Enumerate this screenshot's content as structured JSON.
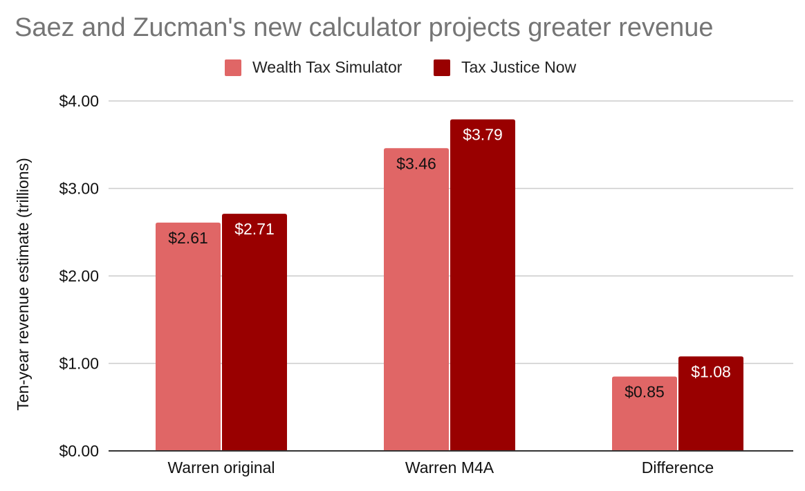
{
  "chart_data": {
    "type": "bar",
    "title": "Saez and Zucman's new calculator projects greater revenue",
    "xlabel": "",
    "ylabel": "Ten-year revenue estimate (trillions)",
    "categories": [
      "Warren original",
      "Warren M4A",
      "Difference"
    ],
    "series": [
      {
        "name": "Wealth Tax Simulator",
        "color": "#e06666",
        "label_color": "#111111",
        "values": [
          2.61,
          3.46,
          0.85
        ],
        "labels": [
          "$2.61",
          "$3.46",
          "$0.85"
        ]
      },
      {
        "name": "Tax Justice Now",
        "color": "#990000",
        "label_color": "#ffffff",
        "values": [
          2.71,
          3.79,
          1.08
        ],
        "labels": [
          "$2.71",
          "$3.79",
          "$1.08"
        ]
      }
    ],
    "ylim": [
      0,
      4
    ],
    "yticks": [
      0,
      1,
      2,
      3,
      4
    ],
    "ytick_labels": [
      "$0.00",
      "$1.00",
      "$2.00",
      "$3.00",
      "$4.00"
    ],
    "grid": true,
    "legend_position": "top-center",
    "gridline_color": "#cccccc",
    "axis_color": "#333333"
  }
}
